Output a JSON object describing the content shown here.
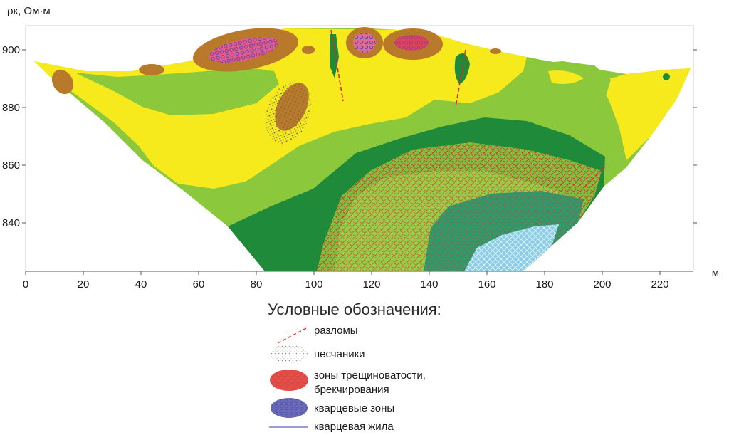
{
  "diagram": {
    "y_axis_label": "ρк, Ом·м",
    "x_unit": "м",
    "x_ticks": [
      "0",
      "20",
      "40",
      "60",
      "80",
      "100",
      "120",
      "140",
      "160",
      "180",
      "200",
      "220"
    ],
    "y_ticks": [
      "900",
      "880",
      "860",
      "840"
    ]
  },
  "legend": {
    "title": "Условные обозначения:",
    "items": [
      {
        "key": "fault",
        "label": "разломы"
      },
      {
        "key": "sandstone",
        "label": "песчаники"
      },
      {
        "key": "fracture",
        "label": "зоны трещиноватости,",
        "label2": "брекчирования"
      },
      {
        "key": "quartz",
        "label": "кварцевые зоны"
      },
      {
        "key": "vein",
        "label": "кварцевая жила"
      }
    ]
  },
  "colors": {
    "yellow": "#f7ea1c",
    "light_green": "#8cc83c",
    "dark_green": "#1f8a3a",
    "brown": "#b87a2a",
    "fault_red": "#d42a2a",
    "fracture_red": "#e2504a",
    "quartz_blue": "#6a6ab8",
    "light_blue": "#8ccde6",
    "vein_line": "#7b7bc4"
  }
}
